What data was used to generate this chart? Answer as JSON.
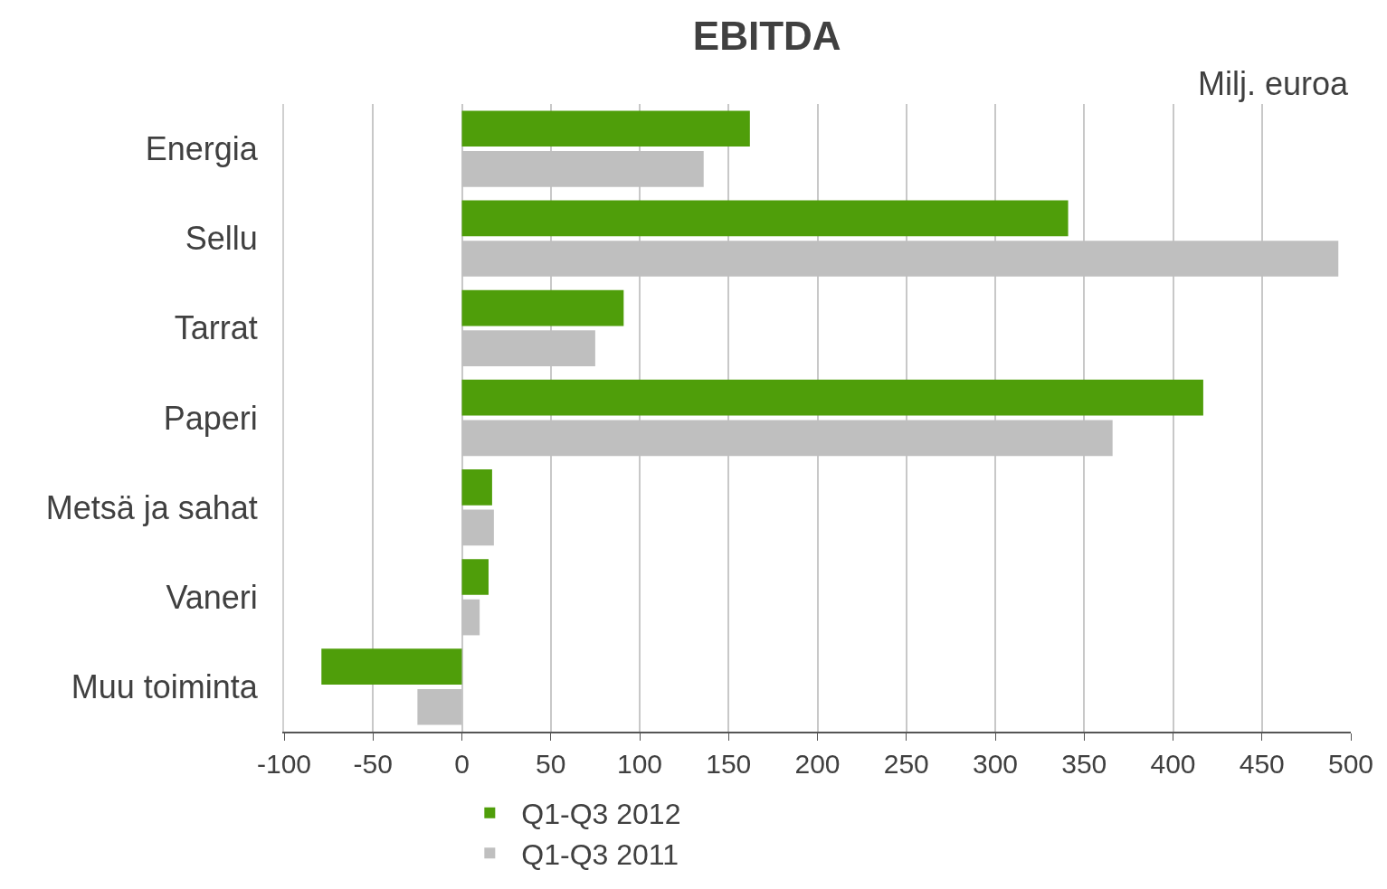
{
  "chart_data": {
    "type": "bar",
    "title": "EBITDA",
    "annotations": [
      "Milj. euroa"
    ],
    "orientation": "horizontal",
    "categories": [
      "Energia",
      "Sellu",
      "Tarrat",
      "Paperi",
      "Metsä ja sahat",
      "Vaneri",
      "Muu toiminta"
    ],
    "series": [
      {
        "name": "Q1-Q3 2012",
        "color": "#4f9e0a",
        "values": [
          162,
          341,
          91,
          417,
          17,
          15,
          -79
        ]
      },
      {
        "name": "Q1-Q3 2011",
        "color": "#bfbfbf",
        "values": [
          136,
          493,
          75,
          366,
          18,
          10,
          -25
        ]
      }
    ],
    "xlim": [
      -100,
      500
    ],
    "xticks": [
      -100,
      -50,
      0,
      50,
      100,
      150,
      200,
      250,
      300,
      350,
      400,
      450,
      500
    ],
    "grid": "x",
    "legend": "bottom"
  }
}
